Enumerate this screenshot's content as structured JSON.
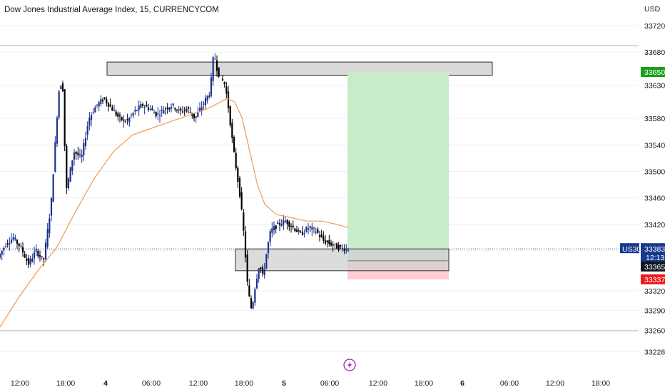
{
  "header": {
    "title": "Dow Jones Industrial Average Index, 15, CURRENCYCOM",
    "currency": "USD"
  },
  "colors": {
    "candle_up": "#1c2f8e",
    "candle_down": "#000000",
    "ma_line": "#f09a52",
    "target_zone": "#c8ebc8",
    "stop_zone": "#ffcdd2",
    "entry_label": "#131722",
    "target_label": "#1b9e1b",
    "stop_label": "#f01a1a",
    "current_label": "#173a8e",
    "box_fill": "#d0d0d0"
  },
  "chart_data": {
    "type": "candlestick",
    "title": "Dow Jones Industrial Average Index, 15, CURRENCYCOM",
    "y_axis": {
      "unit": "USD",
      "ticks": [
        33720,
        33680,
        33630,
        33580,
        33540,
        33500,
        33460,
        33420,
        33380,
        33320,
        33290,
        33260,
        33228
      ],
      "range": [
        33210,
        33735
      ]
    },
    "x_axis": {
      "ticks": [
        {
          "label": "12:00",
          "bold": false
        },
        {
          "label": "18:00",
          "bold": false
        },
        {
          "label": "4",
          "bold": true
        },
        {
          "label": "06:00",
          "bold": false
        },
        {
          "label": "12:00",
          "bold": false
        },
        {
          "label": "18:00",
          "bold": false
        },
        {
          "label": "5",
          "bold": true
        },
        {
          "label": "06:00",
          "bold": false
        },
        {
          "label": "12:00",
          "bold": false
        },
        {
          "label": "18:00",
          "bold": false
        },
        {
          "label": "6",
          "bold": true
        },
        {
          "label": "06:00",
          "bold": false
        },
        {
          "label": "12:00",
          "bold": false
        },
        {
          "label": "18:00",
          "bold": false
        }
      ]
    },
    "price_line_path": [
      [
        0,
        33370
      ],
      [
        4,
        33390
      ],
      [
        8,
        33400
      ],
      [
        12,
        33385
      ],
      [
        16,
        33360
      ],
      [
        20,
        33380
      ],
      [
        24,
        33365
      ],
      [
        28,
        33450
      ],
      [
        32,
        33620
      ],
      [
        34,
        33640
      ],
      [
        36,
        33470
      ],
      [
        40,
        33530
      ],
      [
        44,
        33520
      ],
      [
        48,
        33580
      ],
      [
        52,
        33600
      ],
      [
        56,
        33610
      ],
      [
        60,
        33595
      ],
      [
        64,
        33580
      ],
      [
        68,
        33575
      ],
      [
        72,
        33590
      ],
      [
        76,
        33600
      ],
      [
        80,
        33595
      ],
      [
        84,
        33585
      ],
      [
        88,
        33595
      ],
      [
        92,
        33600
      ],
      [
        96,
        33590
      ],
      [
        100,
        33595
      ],
      [
        104,
        33580
      ],
      [
        108,
        33600
      ],
      [
        112,
        33620
      ],
      [
        114,
        33680
      ],
      [
        116,
        33650
      ],
      [
        120,
        33630
      ],
      [
        122,
        33590
      ],
      [
        124,
        33540
      ],
      [
        126,
        33500
      ],
      [
        128,
        33460
      ],
      [
        130,
        33400
      ],
      [
        132,
        33320
      ],
      [
        134,
        33290
      ],
      [
        136,
        33330
      ],
      [
        138,
        33360
      ],
      [
        140,
        33340
      ],
      [
        142,
        33380
      ],
      [
        144,
        33410
      ],
      [
        148,
        33420
      ],
      [
        152,
        33425
      ],
      [
        156,
        33415
      ],
      [
        160,
        33405
      ],
      [
        164,
        33415
      ],
      [
        168,
        33410
      ],
      [
        172,
        33395
      ],
      [
        176,
        33390
      ],
      [
        180,
        33385
      ],
      [
        184,
        33383
      ]
    ],
    "moving_average": [
      [
        0,
        33265
      ],
      [
        10,
        33310
      ],
      [
        20,
        33350
      ],
      [
        30,
        33385
      ],
      [
        40,
        33440
      ],
      [
        50,
        33490
      ],
      [
        60,
        33530
      ],
      [
        70,
        33555
      ],
      [
        80,
        33565
      ],
      [
        90,
        33575
      ],
      [
        100,
        33585
      ],
      [
        110,
        33595
      ],
      [
        120,
        33610
      ],
      [
        124,
        33605
      ],
      [
        128,
        33580
      ],
      [
        132,
        33530
      ],
      [
        136,
        33480
      ],
      [
        140,
        33450
      ],
      [
        146,
        33435
      ],
      [
        154,
        33430
      ],
      [
        162,
        33425
      ],
      [
        170,
        33425
      ],
      [
        178,
        33420
      ],
      [
        184,
        33415
      ]
    ],
    "resistance_box": {
      "top": 33665,
      "bottom": 33645
    },
    "support_box": {
      "top": 33383,
      "bottom": 33350
    },
    "position": {
      "entry": 33365,
      "target": 33650,
      "stop": 33337
    },
    "price_labels": [
      {
        "id": "target",
        "text": "33650",
        "value": 33650
      },
      {
        "id": "current",
        "text": "33383",
        "sub": "12:13",
        "symbol": "US30",
        "value": 33383
      },
      {
        "id": "entry",
        "text": "33365",
        "value": 33365
      },
      {
        "id": "stop",
        "text": "33337",
        "value": 33337
      }
    ],
    "marker": "lightning-icon"
  }
}
